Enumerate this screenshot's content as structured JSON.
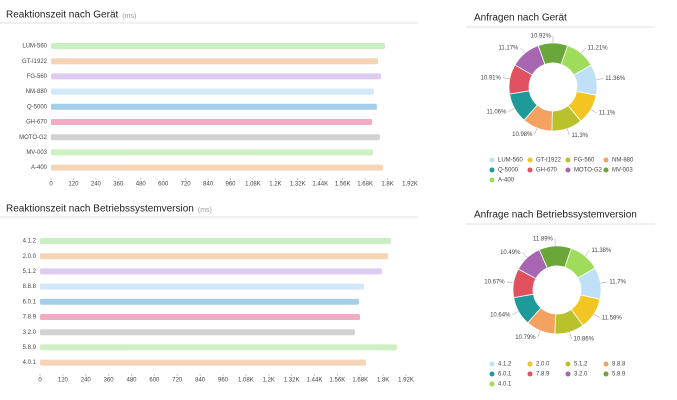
{
  "chart_data": [
    {
      "type": "bar",
      "orientation": "horizontal",
      "title": "Reaktionszeit nach Gerät",
      "subtitle": "(ms)",
      "categories": [
        "LUM-560",
        "GT-I1922",
        "FG-560",
        "NM-880",
        "Q-5000",
        "GH-670",
        "MOTO-G2",
        "MV-003",
        "A-400"
      ],
      "values": [
        1786,
        1749,
        1765,
        1727,
        1743,
        1717,
        1759,
        1722,
        1775
      ],
      "colors": [
        "#c9f0c2",
        "#f5d4b4",
        "#ddcbf1",
        "#d2e7f8",
        "#a3cfea",
        "#f3aac4",
        "#d2d2d2",
        "#cef0c2",
        "#f5d4b8"
      ],
      "xlim": [
        0,
        1920
      ],
      "xticks": [
        0,
        120,
        240,
        360,
        480,
        600,
        720,
        840,
        960,
        {
          "value": 1080,
          "label": "1.08K"
        },
        {
          "value": 1200,
          "label": "1.2K"
        },
        {
          "value": 1320,
          "label": "1.32K"
        },
        {
          "value": 1440,
          "label": "1.44K"
        },
        {
          "value": 1560,
          "label": "1.56K"
        },
        {
          "value": 1680,
          "label": "1.68K"
        },
        {
          "value": 1800,
          "label": "1.8K"
        },
        {
          "value": 1920,
          "label": "1.92K"
        }
      ]
    },
    {
      "type": "bar",
      "orientation": "horizontal",
      "title": "Reaktionszeit nach Betriebssystemversion",
      "subtitle": "(ms)",
      "categories": [
        "4.1.2",
        "2.0.0",
        "5.1.2",
        "8.8.8",
        "6.0.1",
        "7.8.9",
        "3.2.0",
        "5.8.9",
        "4.0.1"
      ],
      "values": [
        1841,
        1826,
        1794,
        1700,
        1673,
        1679,
        1652,
        1873,
        1710
      ],
      "colors": [
        "#c9f0c2",
        "#f5d4b4",
        "#ddcbf1",
        "#d2e7f8",
        "#a3cfea",
        "#f3aac4",
        "#d2d2d2",
        "#cef0c2",
        "#f5d4b8"
      ],
      "xlim": [
        0,
        1920
      ],
      "xticks": [
        0,
        120,
        240,
        360,
        480,
        600,
        720,
        840,
        960,
        {
          "value": 1080,
          "label": "1.08K"
        },
        {
          "value": 1200,
          "label": "1.2K"
        },
        {
          "value": 1320,
          "label": "1.32K"
        },
        {
          "value": 1440,
          "label": "1.44K"
        },
        {
          "value": 1560,
          "label": "1.56K"
        },
        {
          "value": 1680,
          "label": "1.68K"
        },
        {
          "value": 1800,
          "label": "1.8K"
        },
        {
          "value": 1920,
          "label": "1.92K"
        }
      ]
    },
    {
      "type": "donut",
      "title": "Anfragen nach Gerät",
      "categories": [
        "LUM-560",
        "GT-I1922",
        "FG-560",
        "NM-880",
        "Q-5000",
        "GH-670",
        "MOTO-G2",
        "MV-003",
        "A-400"
      ],
      "values": [
        11.36,
        11.1,
        11.3,
        10.98,
        11.06,
        10.91,
        11.17,
        10.92,
        11.21
      ],
      "value_labels": [
        "11.36%",
        "11.1%",
        "11.3%",
        "10.98%",
        "11.06%",
        "10.91%",
        "11.17%",
        "10.92%",
        "11.21%"
      ],
      "colors": [
        "#bfe0f7",
        "#f2c522",
        "#b9c22a",
        "#f5a15f",
        "#1f9a9a",
        "#e0505e",
        "#a666b0",
        "#6aa63a",
        "#9fdc5c"
      ]
    },
    {
      "type": "donut",
      "title": "Anfrage nach Betriebssystemversion",
      "categories": [
        "4.1.2",
        "2.0.0",
        "5.1.2",
        "8.8.8",
        "6.0.1",
        "7.8.9",
        "3.2.0",
        "5.8.9",
        "4.0.1"
      ],
      "values": [
        11.7,
        11.58,
        10.86,
        10.79,
        10.64,
        10.67,
        10.49,
        11.89,
        11.38
      ],
      "value_labels": [
        "11.7%",
        "11.58%",
        "10.86%",
        "10.79%",
        "10.64%",
        "10.67%",
        "10.49%",
        "11.89%",
        "11.38%"
      ],
      "colors": [
        "#bfe0f7",
        "#f2c522",
        "#b9c22a",
        "#f5a15f",
        "#1f9a9a",
        "#e0505e",
        "#a666b0",
        "#6aa63a",
        "#9fdc5c"
      ]
    }
  ]
}
